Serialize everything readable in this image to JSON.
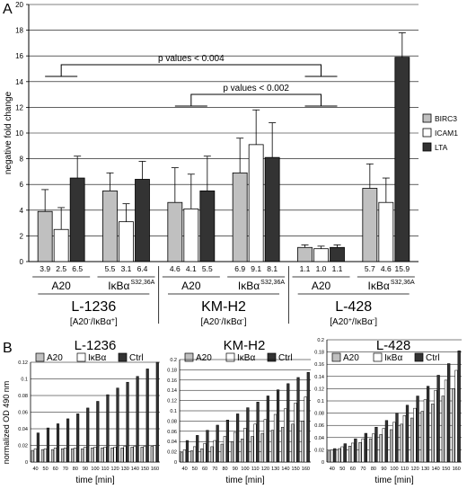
{
  "panels": {
    "a": {
      "label": "A"
    },
    "b": {
      "label": "B"
    }
  },
  "colors": {
    "birc3": "#c0c0c0",
    "icam1": "#ffffff",
    "lta": "#333333",
    "a20": "#c0c0c0",
    "ikba": "#ffffff",
    "ctrl": "#333333"
  },
  "chart_data": [
    {
      "type": "bar",
      "ylabel": "negative fold change",
      "ylim": [
        0,
        20
      ],
      "yticks": [
        0,
        2,
        4,
        6,
        8,
        10,
        12,
        14,
        16,
        18,
        20
      ],
      "grid": true,
      "legend": [
        "BIRC3",
        "ICAM1",
        "LTA"
      ],
      "legend_position": "right",
      "groups": [
        {
          "label": "A20",
          "sup": "",
          "values": [
            3.9,
            2.5,
            6.5
          ],
          "errors": [
            1.7,
            1.7,
            1.7
          ],
          "value_labels": [
            "3.9",
            "2.5",
            "6.5"
          ]
        },
        {
          "label": "IκBα",
          "sup": "S32,36A",
          "values": [
            5.5,
            3.1,
            6.4
          ],
          "errors": [
            1.4,
            1.4,
            1.4
          ],
          "value_labels": [
            "5.5",
            "3.1",
            "6.4"
          ]
        },
        {
          "label": "A20",
          "sup": "",
          "values": [
            4.6,
            4.1,
            5.5
          ],
          "errors": [
            2.7,
            2.7,
            2.7
          ],
          "value_labels": [
            "4.6",
            "4.1",
            "5.5"
          ]
        },
        {
          "label": "IκBα",
          "sup": "S32,36A",
          "values": [
            6.9,
            9.1,
            8.1
          ],
          "errors": [
            2.7,
            2.7,
            2.7
          ],
          "value_labels": [
            "6.9",
            "9.1",
            "8.1"
          ]
        },
        {
          "label": "A20",
          "sup": "",
          "values": [
            1.1,
            1.0,
            1.1
          ],
          "errors": [
            0.2,
            0.2,
            0.2
          ],
          "value_labels": [
            "1.1",
            "1.0",
            "1.1"
          ]
        },
        {
          "label": "IκBα",
          "sup": "S32,36A",
          "values": [
            5.7,
            4.6,
            15.9
          ],
          "errors": [
            1.9,
            1.9,
            1.9
          ],
          "value_labels": [
            "5.7",
            "4.6",
            "15.9"
          ]
        }
      ],
      "cell_lines": [
        {
          "name": "L-1236",
          "genotype": "[A20",
          "g1": "-",
          "mid": "/IκBα",
          "g2": "+",
          "end": "]"
        },
        {
          "name": "KM-H2",
          "genotype": "[A20",
          "g1": "-",
          "mid": "/IκBα",
          "g2": "-",
          "end": "]"
        },
        {
          "name": "L-428",
          "genotype": "[A20",
          "g1": "+",
          "mid": "/IκBα",
          "g2": "-",
          "end": "]"
        }
      ],
      "annotations": [
        "p values < 0.004",
        "p values < 0.002"
      ]
    },
    {
      "type": "bar",
      "title": "L-1236",
      "xlabel": "time [min]",
      "ylabel": "normalized OD 490 nm",
      "ylim": [
        0,
        0.12
      ],
      "yticks": [
        "0",
        "0.02",
        "0.04",
        "0.06",
        "0.08",
        "0.1",
        "0.12"
      ],
      "categories": [
        "40",
        "50",
        "60",
        "70",
        "80",
        "90",
        "100",
        "110",
        "120",
        "130",
        "140",
        "150",
        "160"
      ],
      "series": [
        {
          "name": "A20",
          "values": [
            0.014,
            0.015,
            0.015,
            0.016,
            0.016,
            0.016,
            0.017,
            0.017,
            0.017,
            0.017,
            0.018,
            0.018,
            0.019
          ]
        },
        {
          "name": "IκBα",
          "values": [
            0.016,
            0.016,
            0.017,
            0.017,
            0.017,
            0.018,
            0.018,
            0.018,
            0.018,
            0.019,
            0.019,
            0.019,
            0.02
          ]
        },
        {
          "name": "Ctrl",
          "values": [
            0.035,
            0.041,
            0.046,
            0.052,
            0.058,
            0.065,
            0.073,
            0.081,
            0.089,
            0.096,
            0.103,
            0.112,
            0.12
          ]
        }
      ]
    },
    {
      "type": "bar",
      "title": "KM-H2",
      "xlabel": "time [min]",
      "ylim": [
        0,
        0.2
      ],
      "yticks": [
        "0",
        "0.02",
        "0.04",
        "0.06",
        "0.08",
        "0.1",
        "0.12",
        "0.14",
        "0.16",
        "0.18",
        "0.2"
      ],
      "categories": [
        "40",
        "50",
        "60",
        "70",
        "80",
        "90",
        "100",
        "110",
        "120",
        "130",
        "140",
        "150",
        "160"
      ],
      "series": [
        {
          "name": "A20",
          "values": [
            0.018,
            0.022,
            0.026,
            0.03,
            0.035,
            0.04,
            0.045,
            0.05,
            0.056,
            0.062,
            0.068,
            0.074,
            0.08
          ]
        },
        {
          "name": "IκBα",
          "values": [
            0.024,
            0.03,
            0.036,
            0.042,
            0.05,
            0.058,
            0.066,
            0.074,
            0.083,
            0.093,
            0.104,
            0.115,
            0.127
          ]
        },
        {
          "name": "Ctrl",
          "values": [
            0.042,
            0.052,
            0.062,
            0.072,
            0.082,
            0.094,
            0.106,
            0.117,
            0.129,
            0.141,
            0.153,
            0.165,
            0.175
          ]
        }
      ]
    },
    {
      "type": "bar",
      "title": "L-428",
      "xlabel": "time [min]",
      "ylim": [
        0,
        0.2
      ],
      "yticks": [
        "0",
        "0.02",
        "0.04",
        "0.06",
        "0.08",
        "0.1",
        "0.12",
        "0.14",
        "0.16",
        "0.18",
        "0.2"
      ],
      "categories": [
        "40",
        "50",
        "60",
        "70",
        "80",
        "90",
        "100",
        "110",
        "120",
        "130",
        "140",
        "150",
        "160"
      ],
      "series": [
        {
          "name": "A20",
          "values": [
            0.018,
            0.022,
            0.026,
            0.032,
            0.038,
            0.045,
            0.053,
            0.062,
            0.072,
            0.083,
            0.095,
            0.108,
            0.12
          ]
        },
        {
          "name": "IκBα",
          "values": [
            0.02,
            0.025,
            0.031,
            0.038,
            0.046,
            0.055,
            0.065,
            0.076,
            0.088,
            0.102,
            0.117,
            0.134,
            0.15
          ]
        },
        {
          "name": "Ctrl",
          "values": [
            0.022,
            0.03,
            0.038,
            0.047,
            0.057,
            0.068,
            0.08,
            0.093,
            0.108,
            0.124,
            0.142,
            0.161,
            0.182
          ]
        }
      ]
    }
  ]
}
